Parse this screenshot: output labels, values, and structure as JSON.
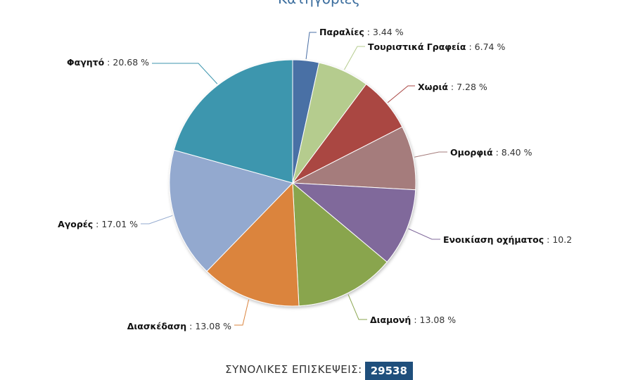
{
  "chart_data": {
    "type": "pie",
    "title": "Κατηγορίες",
    "slices": [
      {
        "name": "Παραλίες",
        "value": 3.44,
        "label": "3.44 %",
        "color": "#4a6fa5"
      },
      {
        "name": "Τουριστικά Γραφεία",
        "value": 6.74,
        "label": "6.74 %",
        "color": "#b5cc8e"
      },
      {
        "name": "Χωριά",
        "value": 7.28,
        "label": "7.28 %",
        "color": "#aa4643"
      },
      {
        "name": "Ομορφιά",
        "value": 8.4,
        "label": "8.40 %",
        "color": "#a57c7b"
      },
      {
        "name": "Ενοικίαση οχήματος",
        "value": 10.2,
        "label": "10.2",
        "color": "#80699b"
      },
      {
        "name": "Διαμονή",
        "value": 13.08,
        "label": "13.08 %",
        "color": "#89a54e"
      },
      {
        "name": "Διασκέδαση",
        "value": 13.08,
        "label": "13.08 %",
        "color": "#db843d"
      },
      {
        "name": "Αγορές",
        "value": 17.01,
        "label": "17.01 %",
        "color": "#93a9cf"
      },
      {
        "name": "Φαγητό",
        "value": 20.68,
        "label": "20.68 %",
        "color": "#3d96ae"
      }
    ]
  },
  "footer": {
    "total_label": "ΣΥΝΟΛΙΚΕΣ ΕΠΙΣΚΕΨΕΙΣ:",
    "total_value": "29538"
  }
}
